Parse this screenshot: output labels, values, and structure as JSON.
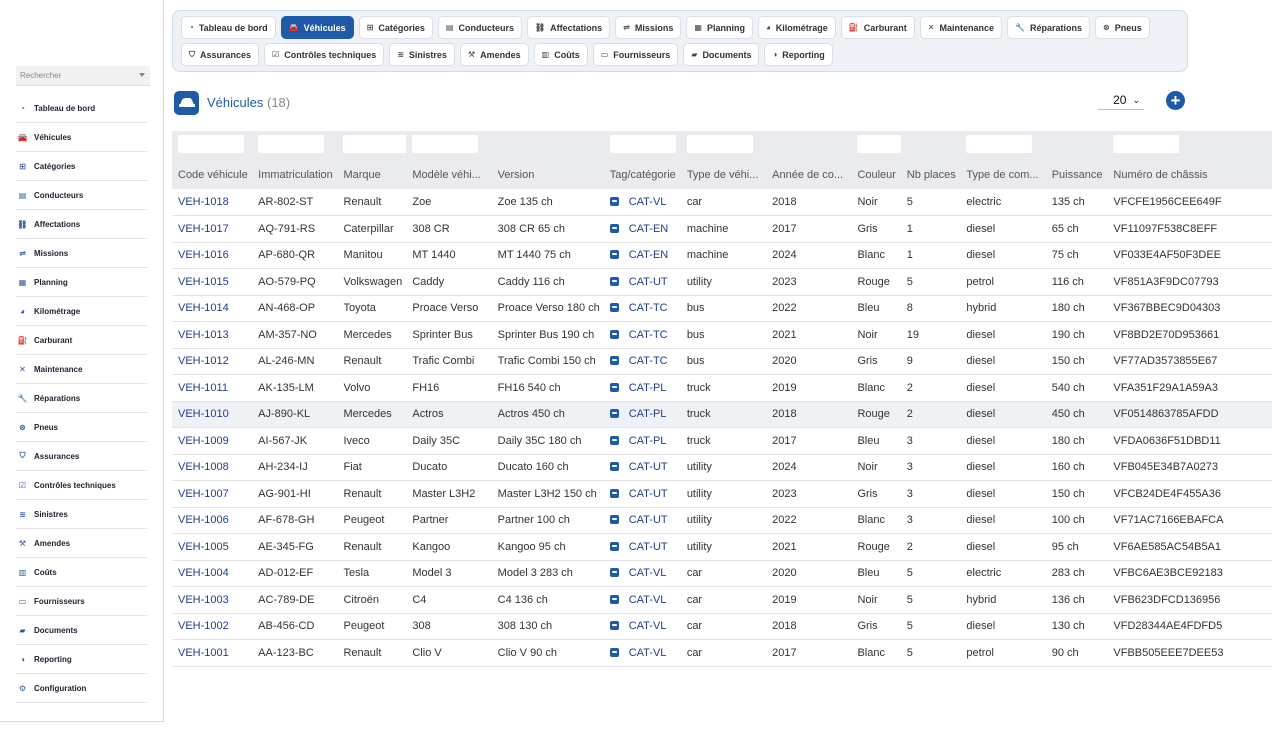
{
  "sidebar": {
    "search_placeholder": "Rechercher",
    "items": [
      {
        "label": "Tableau de bord",
        "icon": "dashboard-icon",
        "glyph": "◔"
      },
      {
        "label": "Véhicules",
        "icon": "car-icon",
        "glyph": "🚘"
      },
      {
        "label": "Catégories",
        "icon": "sitemap-icon",
        "glyph": "⊞"
      },
      {
        "label": "Conducteurs",
        "icon": "id-card-icon",
        "glyph": "▤"
      },
      {
        "label": "Affectations",
        "icon": "link-icon",
        "glyph": "⛓"
      },
      {
        "label": "Missions",
        "icon": "route-icon",
        "glyph": "⇌"
      },
      {
        "label": "Planning",
        "icon": "calendar-icon",
        "glyph": "▦"
      },
      {
        "label": "Kilométrage",
        "icon": "gauge-icon",
        "glyph": "◕"
      },
      {
        "label": "Carburant",
        "icon": "fuel-icon",
        "glyph": "⛽"
      },
      {
        "label": "Maintenance",
        "icon": "tools-icon",
        "glyph": "✕"
      },
      {
        "label": "Réparations",
        "icon": "wrench-icon",
        "glyph": "🔧"
      },
      {
        "label": "Pneus",
        "icon": "tire-icon",
        "glyph": "⊗"
      },
      {
        "label": "Assurances",
        "icon": "shield-icon",
        "glyph": "⛉"
      },
      {
        "label": "Contrôles techniques",
        "icon": "clipboard-icon",
        "glyph": "☑"
      },
      {
        "label": "Sinistres",
        "icon": "crash-icon",
        "glyph": "≋"
      },
      {
        "label": "Amendes",
        "icon": "gavel-icon",
        "glyph": "⚒"
      },
      {
        "label": "Coûts",
        "icon": "money-icon",
        "glyph": "▥"
      },
      {
        "label": "Fournisseurs",
        "icon": "truck-icon",
        "glyph": "▭"
      },
      {
        "label": "Documents",
        "icon": "folder-icon",
        "glyph": "▰"
      },
      {
        "label": "Reporting",
        "icon": "chart-pie-icon",
        "glyph": "◑"
      },
      {
        "label": "Configuration",
        "icon": "gear-icon",
        "glyph": "⚙"
      }
    ]
  },
  "topnav": {
    "row1": [
      {
        "label": "Tableau de bord",
        "icon": "dashboard-icon",
        "glyph": "◔",
        "active": false
      },
      {
        "label": "Véhicules",
        "icon": "car-icon",
        "glyph": "🚘",
        "active": true
      },
      {
        "label": "Catégories",
        "icon": "sitemap-icon",
        "glyph": "⊞",
        "active": false
      },
      {
        "label": "Conducteurs",
        "icon": "id-card-icon",
        "glyph": "▤",
        "active": false
      },
      {
        "label": "Affectations",
        "icon": "link-icon",
        "glyph": "⛓",
        "active": false
      },
      {
        "label": "Missions",
        "icon": "route-icon",
        "glyph": "⇌",
        "active": false
      },
      {
        "label": "Planning",
        "icon": "calendar-icon",
        "glyph": "▦",
        "active": false
      },
      {
        "label": "Kilométrage",
        "icon": "gauge-icon",
        "glyph": "◕",
        "active": false
      },
      {
        "label": "Carburant",
        "icon": "fuel-icon",
        "glyph": "⛽",
        "active": false
      },
      {
        "label": "Maintenance",
        "icon": "tools-icon",
        "glyph": "✕",
        "active": false
      },
      {
        "label": "Réparations",
        "icon": "wrench-icon",
        "glyph": "🔧",
        "active": false
      },
      {
        "label": "Pneus",
        "icon": "tire-icon",
        "glyph": "⊗",
        "active": false
      }
    ],
    "row2": [
      {
        "label": "Assurances",
        "icon": "shield-icon",
        "glyph": "⛉",
        "active": false
      },
      {
        "label": "Contrôles techniques",
        "icon": "clipboard-icon",
        "glyph": "☑",
        "active": false
      },
      {
        "label": "Sinistres",
        "icon": "crash-icon",
        "glyph": "≋",
        "active": false
      },
      {
        "label": "Amendes",
        "icon": "gavel-icon",
        "glyph": "⚒",
        "active": false
      },
      {
        "label": "Coûts",
        "icon": "money-icon",
        "glyph": "▥",
        "active": false
      },
      {
        "label": "Fournisseurs",
        "icon": "truck-icon",
        "glyph": "▭",
        "active": false
      },
      {
        "label": "Documents",
        "icon": "folder-icon",
        "glyph": "▰",
        "active": false
      },
      {
        "label": "Reporting",
        "icon": "chart-pie-icon",
        "glyph": "◑",
        "active": false
      }
    ]
  },
  "header": {
    "title": "Véhicules",
    "count": "(18)",
    "page_size": "20",
    "add_label": "+"
  },
  "colors": {
    "accent": "#1f5aa8",
    "header_bg": "#e9ebee",
    "row_highlight": "#eef1f5"
  },
  "table": {
    "columns": [
      "Code véhicule",
      "Immatriculation",
      "Marque",
      "Modèle véhi...",
      "Version",
      "Tag/catégorie",
      "Type de véhi...",
      "Année de co...",
      "Couleur",
      "Nb places",
      "Type de com...",
      "Puissance",
      "Numéro de châssis"
    ],
    "filter_columns": [
      0,
      1,
      2,
      3,
      5,
      6,
      8,
      10,
      12
    ],
    "highlighted_row": 8,
    "rows": [
      [
        "VEH-1018",
        "AR-802-ST",
        "Renault",
        "Zoe",
        "Zoe 135 ch",
        "CAT-VL",
        "car",
        "2018",
        "Noir",
        "5",
        "electric",
        "135 ch",
        "VFCFE1956CEE649F"
      ],
      [
        "VEH-1017",
        "AQ-791-RS",
        "Caterpillar",
        "308 CR",
        "308 CR 65 ch",
        "CAT-EN",
        "machine",
        "2017",
        "Gris",
        "1",
        "diesel",
        "65 ch",
        "VF11097F538C8EFF"
      ],
      [
        "VEH-1016",
        "AP-680-QR",
        "Manitou",
        "MT 1440",
        "MT 1440 75 ch",
        "CAT-EN",
        "machine",
        "2024",
        "Blanc",
        "1",
        "diesel",
        "75 ch",
        "VF033E4AF50F3DEE"
      ],
      [
        "VEH-1015",
        "AO-579-PQ",
        "Volkswagen",
        "Caddy",
        "Caddy 116 ch",
        "CAT-UT",
        "utility",
        "2023",
        "Rouge",
        "5",
        "petrol",
        "116 ch",
        "VF851A3F9DC07793"
      ],
      [
        "VEH-1014",
        "AN-468-OP",
        "Toyota",
        "Proace Verso",
        "Proace Verso 180 ch",
        "CAT-TC",
        "bus",
        "2022",
        "Bleu",
        "8",
        "hybrid",
        "180 ch",
        "VF367BBEC9D04303"
      ],
      [
        "VEH-1013",
        "AM-357-NO",
        "Mercedes",
        "Sprinter Bus",
        "Sprinter Bus 190 ch",
        "CAT-TC",
        "bus",
        "2021",
        "Noir",
        "19",
        "diesel",
        "190 ch",
        "VF8BD2E70D953661"
      ],
      [
        "VEH-1012",
        "AL-246-MN",
        "Renault",
        "Trafic Combi",
        "Trafic Combi 150 ch",
        "CAT-TC",
        "bus",
        "2020",
        "Gris",
        "9",
        "diesel",
        "150 ch",
        "VF77AD3573855E67"
      ],
      [
        "VEH-1011",
        "AK-135-LM",
        "Volvo",
        "FH16",
        "FH16 540 ch",
        "CAT-PL",
        "truck",
        "2019",
        "Blanc",
        "2",
        "diesel",
        "540 ch",
        "VFA351F29A1A59A3"
      ],
      [
        "VEH-1010",
        "AJ-890-KL",
        "Mercedes",
        "Actros",
        "Actros 450 ch",
        "CAT-PL",
        "truck",
        "2018",
        "Rouge",
        "2",
        "diesel",
        "450 ch",
        "VF0514863785AFDD"
      ],
      [
        "VEH-1009",
        "AI-567-JK",
        "Iveco",
        "Daily 35C",
        "Daily 35C 180 ch",
        "CAT-PL",
        "truck",
        "2017",
        "Bleu",
        "3",
        "diesel",
        "180 ch",
        "VFDA0636F51DBD11"
      ],
      [
        "VEH-1008",
        "AH-234-IJ",
        "Fiat",
        "Ducato",
        "Ducato 160 ch",
        "CAT-UT",
        "utility",
        "2024",
        "Noir",
        "3",
        "diesel",
        "160 ch",
        "VFB045E34B7A0273"
      ],
      [
        "VEH-1007",
        "AG-901-HI",
        "Renault",
        "Master L3H2",
        "Master L3H2 150 ch",
        "CAT-UT",
        "utility",
        "2023",
        "Gris",
        "3",
        "diesel",
        "150 ch",
        "VFCB24DE4F455A36"
      ],
      [
        "VEH-1006",
        "AF-678-GH",
        "Peugeot",
        "Partner",
        "Partner 100 ch",
        "CAT-UT",
        "utility",
        "2022",
        "Blanc",
        "3",
        "diesel",
        "100 ch",
        "VF71AC7166EBAFCA"
      ],
      [
        "VEH-1005",
        "AE-345-FG",
        "Renault",
        "Kangoo",
        "Kangoo 95 ch",
        "CAT-UT",
        "utility",
        "2021",
        "Rouge",
        "2",
        "diesel",
        "95 ch",
        "VF6AE585AC54B5A1"
      ],
      [
        "VEH-1004",
        "AD-012-EF",
        "Tesla",
        "Model 3",
        "Model 3 283 ch",
        "CAT-VL",
        "car",
        "2020",
        "Bleu",
        "5",
        "electric",
        "283 ch",
        "VFBC6AE3BCE92183"
      ],
      [
        "VEH-1003",
        "AC-789-DE",
        "Citroën",
        "C4",
        "C4 136 ch",
        "CAT-VL",
        "car",
        "2019",
        "Noir",
        "5",
        "hybrid",
        "136 ch",
        "VFB623DFCD136956"
      ],
      [
        "VEH-1002",
        "AB-456-CD",
        "Peugeot",
        "308",
        "308 130 ch",
        "CAT-VL",
        "car",
        "2018",
        "Gris",
        "5",
        "diesel",
        "130 ch",
        "VFD28344AE4FDFD5"
      ],
      [
        "VEH-1001",
        "AA-123-BC",
        "Renault",
        "Clio V",
        "Clio V 90 ch",
        "CAT-VL",
        "car",
        "2017",
        "Blanc",
        "5",
        "petrol",
        "90 ch",
        "VFBB505EEE7DEE53"
      ]
    ]
  }
}
